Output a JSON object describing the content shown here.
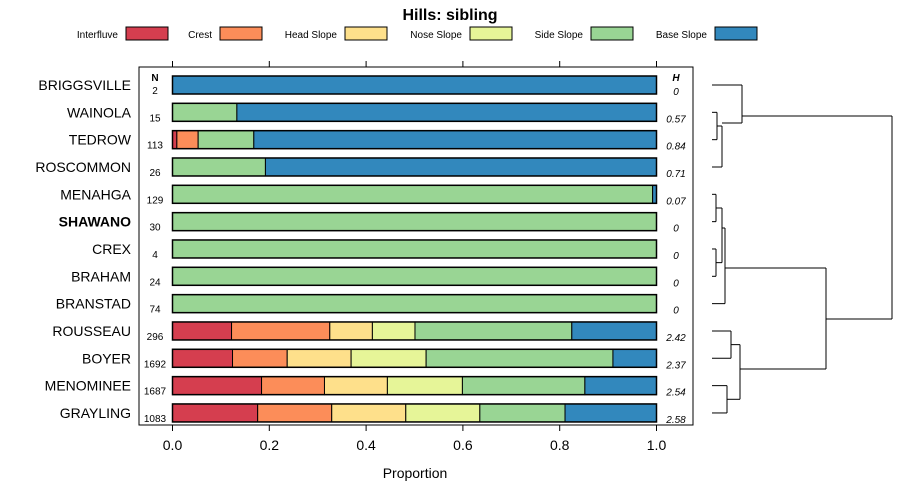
{
  "chart_data": {
    "type": "bar",
    "orientation": "horizontal",
    "stacked": true,
    "title": "Hills: sibling",
    "xlabel": "Proportion",
    "ylabel": "",
    "xlim": [
      0,
      1
    ],
    "xticks": [
      "0.0",
      "0.2",
      "0.4",
      "0.6",
      "0.8",
      "1.0"
    ],
    "n_header": "N",
    "h_header": "H",
    "legend_position": "top",
    "series": [
      {
        "name": "Interfluve",
        "color": "#d53e4f"
      },
      {
        "name": "Crest",
        "color": "#fc8d59"
      },
      {
        "name": "Head Slope",
        "color": "#fee08b"
      },
      {
        "name": "Nose Slope",
        "color": "#e6f598"
      },
      {
        "name": "Side Slope",
        "color": "#99d594"
      },
      {
        "name": "Base Slope",
        "color": "#3288bd"
      }
    ],
    "rows": [
      {
        "name": "BRIGGSVILLE",
        "n": "2",
        "h": "0",
        "bold": false,
        "values": [
          0,
          0,
          0,
          0,
          0,
          1.0
        ]
      },
      {
        "name": "WAINOLA",
        "n": "15",
        "h": "0.57",
        "bold": false,
        "values": [
          0,
          0,
          0,
          0,
          0.133,
          0.867
        ]
      },
      {
        "name": "TEDROW",
        "n": "113",
        "h": "0.84",
        "bold": false,
        "values": [
          0.009,
          0.044,
          0,
          0,
          0.115,
          0.832
        ]
      },
      {
        "name": "ROSCOMMON",
        "n": "26",
        "h": "0.71",
        "bold": false,
        "values": [
          0,
          0,
          0,
          0,
          0.192,
          0.808
        ]
      },
      {
        "name": "MENAHGA",
        "n": "129",
        "h": "0.07",
        "bold": false,
        "values": [
          0,
          0,
          0,
          0,
          0.992,
          0.008
        ]
      },
      {
        "name": "SHAWANO",
        "n": "30",
        "h": "0",
        "bold": true,
        "values": [
          0,
          0,
          0,
          0,
          1.0,
          0
        ]
      },
      {
        "name": "CREX",
        "n": "4",
        "h": "0",
        "bold": false,
        "values": [
          0,
          0,
          0,
          0,
          1.0,
          0
        ]
      },
      {
        "name": "BRAHAM",
        "n": "24",
        "h": "0",
        "bold": false,
        "values": [
          0,
          0,
          0,
          0,
          1.0,
          0
        ]
      },
      {
        "name": "BRANSTAD",
        "n": "74",
        "h": "0",
        "bold": false,
        "values": [
          0,
          0,
          0,
          0,
          1.0,
          0
        ]
      },
      {
        "name": "ROUSSEAU",
        "n": "296",
        "h": "2.42",
        "bold": false,
        "values": [
          0.122,
          0.203,
          0.088,
          0.088,
          0.324,
          0.175
        ]
      },
      {
        "name": "BOYER",
        "n": "1692",
        "h": "2.37",
        "bold": false,
        "values": [
          0.124,
          0.113,
          0.132,
          0.155,
          0.386,
          0.09
        ]
      },
      {
        "name": "MENOMINEE",
        "n": "1687",
        "h": "2.54",
        "bold": false,
        "values": [
          0.184,
          0.13,
          0.13,
          0.155,
          0.253,
          0.148
        ]
      },
      {
        "name": "GRAYLING",
        "n": "1083",
        "h": "2.58",
        "bold": false,
        "values": [
          0.176,
          0.153,
          0.153,
          0.153,
          0.176,
          0.189
        ]
      }
    ]
  }
}
